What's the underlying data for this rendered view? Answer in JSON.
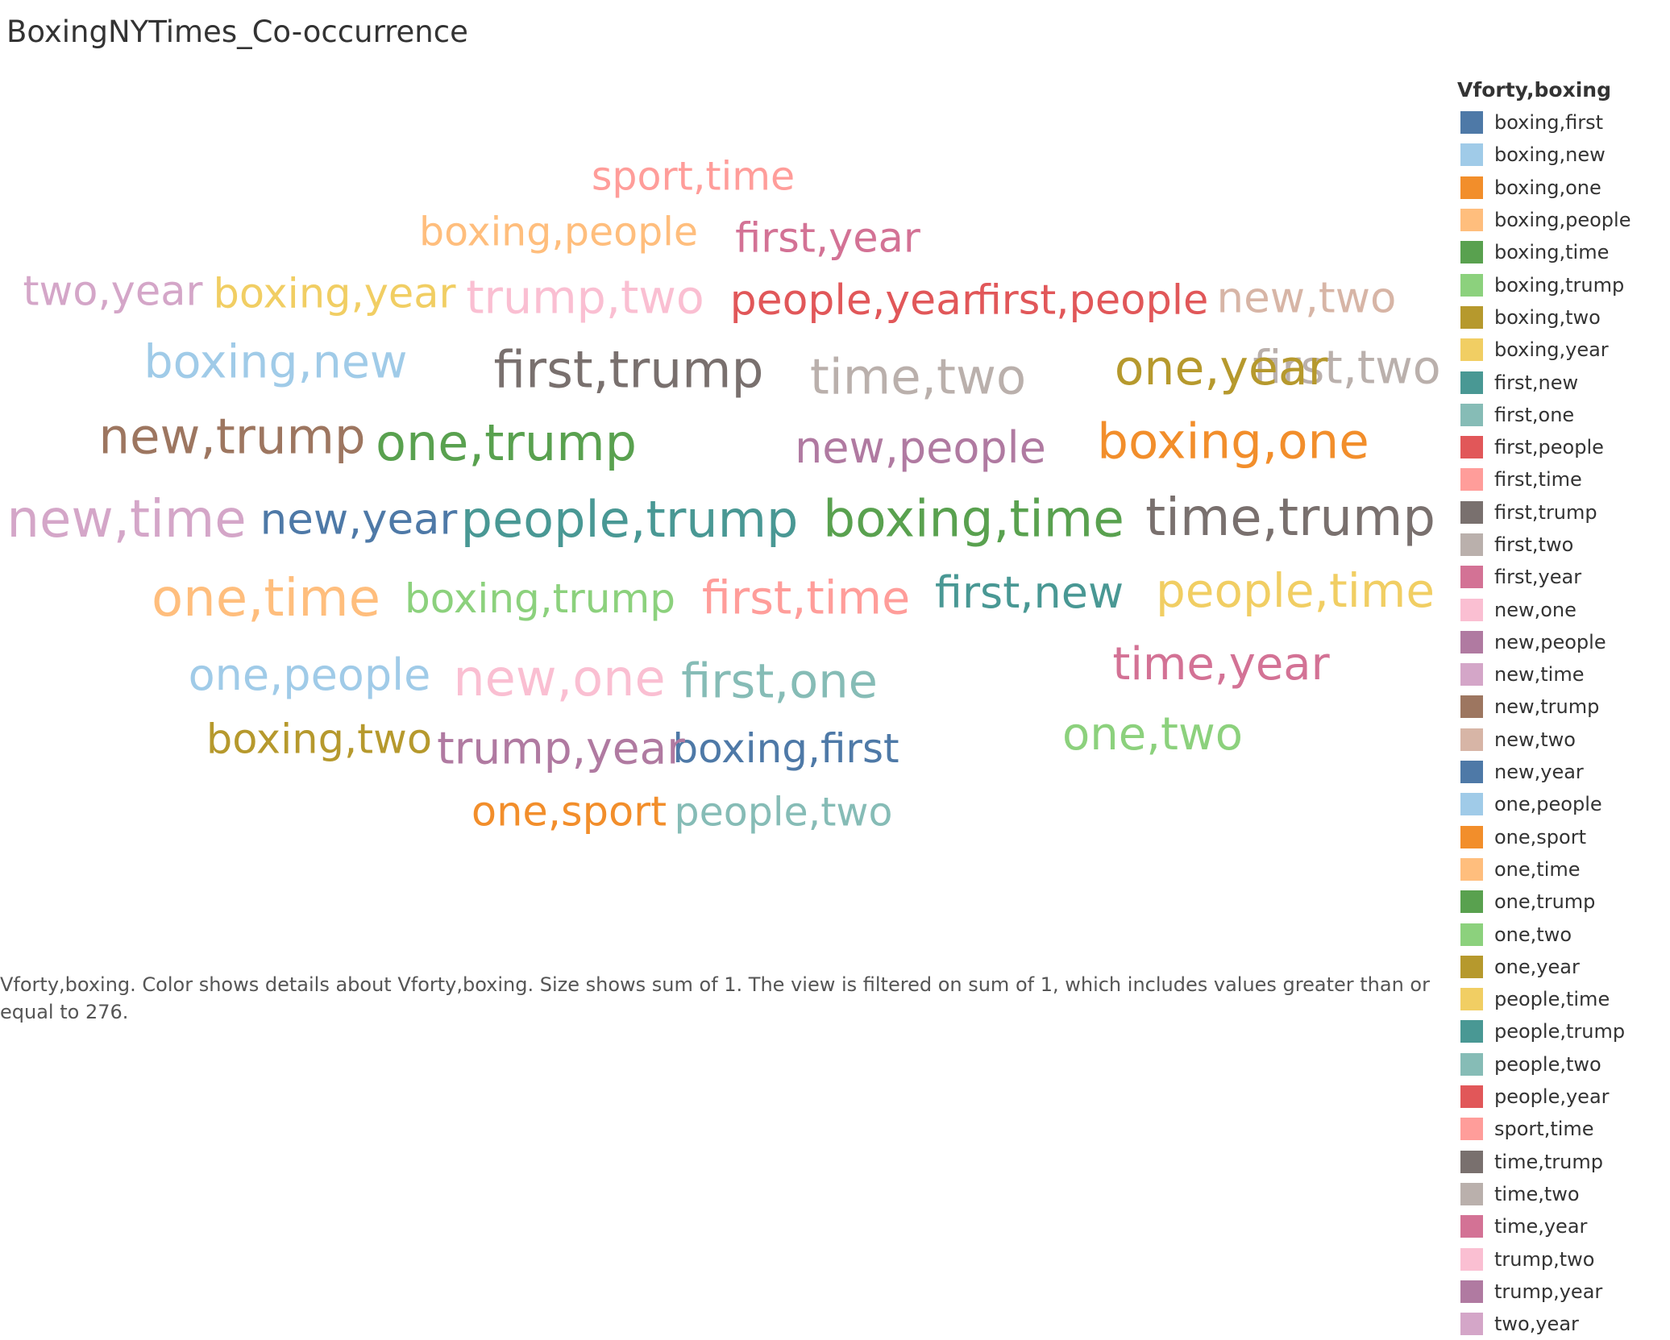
{
  "title": "BoxingNYTimes_Co-occurrence",
  "caption": "Vforty,boxing.  Color shows details about Vforty,boxing.  Size shows sum of 1. The view is filtered on sum of 1, which includes values greater than or equal to 276.",
  "chart_data": {
    "type": "word-cloud",
    "title": "BoxingNYTimes_Co-occurrence",
    "color_field": "Vforty,boxing",
    "size_field": "sum of 1",
    "filter": "sum of 1 >= 276",
    "legend_title": "Vforty,boxing",
    "legend_placement": "right",
    "categories": [
      {
        "label": "boxing,first",
        "color": "#4e79a7",
        "size_rank": 0.58
      },
      {
        "label": "boxing,new",
        "color": "#a0cbe8",
        "size_rank": 0.72
      },
      {
        "label": "boxing,one",
        "color": "#f28e2b",
        "size_rank": 0.78
      },
      {
        "label": "boxing,people",
        "color": "#ffbe7d",
        "size_rank": 0.55
      },
      {
        "label": "boxing,time",
        "color": "#59a14f",
        "size_rank": 0.82
      },
      {
        "label": "boxing,trump",
        "color": "#8cd17d",
        "size_rank": 0.58
      },
      {
        "label": "boxing,two",
        "color": "#b6992d",
        "size_rank": 0.6
      },
      {
        "label": "boxing,year",
        "color": "#f1ce63",
        "size_rank": 0.6
      },
      {
        "label": "first,new",
        "color": "#499894",
        "size_rank": 0.65
      },
      {
        "label": "first,one",
        "color": "#86bcb6",
        "size_rank": 0.75
      },
      {
        "label": "first,people",
        "color": "#e15759",
        "size_rank": 0.6
      },
      {
        "label": "first,time",
        "color": "#ff9d9a",
        "size_rank": 0.72
      },
      {
        "label": "first,trump",
        "color": "#79706e",
        "size_rank": 0.82
      },
      {
        "label": "first,two",
        "color": "#bab0ac",
        "size_rank": 0.72
      },
      {
        "label": "first,year",
        "color": "#d37295",
        "size_rank": 0.6
      },
      {
        "label": "new,one",
        "color": "#fabfd2",
        "size_rank": 0.8
      },
      {
        "label": "new,people",
        "color": "#b07aa1",
        "size_rank": 0.66
      },
      {
        "label": "new,time",
        "color": "#d4a6c8",
        "size_rank": 0.85
      },
      {
        "label": "new,trump",
        "color": "#9d7660",
        "size_rank": 0.78
      },
      {
        "label": "new,two",
        "color": "#d7b5a6",
        "size_rank": 0.64
      },
      {
        "label": "new,year",
        "color": "#4e79a7",
        "size_rank": 0.64
      },
      {
        "label": "one,people",
        "color": "#a0cbe8",
        "size_rank": 0.66
      },
      {
        "label": "one,sport",
        "color": "#f28e2b",
        "size_rank": 0.6
      },
      {
        "label": "one,time",
        "color": "#ffbe7d",
        "size_rank": 0.85
      },
      {
        "label": "one,trump",
        "color": "#59a14f",
        "size_rank": 0.8
      },
      {
        "label": "one,two",
        "color": "#8cd17d",
        "size_rank": 0.7
      },
      {
        "label": "one,year",
        "color": "#b6992d",
        "size_rank": 0.76
      },
      {
        "label": "people,time",
        "color": "#f1ce63",
        "size_rank": 0.74
      },
      {
        "label": "people,trump",
        "color": "#499894",
        "size_rank": 0.8
      },
      {
        "label": "people,two",
        "color": "#86bcb6",
        "size_rank": 0.55
      },
      {
        "label": "people,year",
        "color": "#e15759",
        "size_rank": 0.62
      },
      {
        "label": "sport,time",
        "color": "#ff9d9a",
        "size_rank": 0.55
      },
      {
        "label": "time,trump",
        "color": "#79706e",
        "size_rank": 0.85
      },
      {
        "label": "time,two",
        "color": "#bab0ac",
        "size_rank": 0.78
      },
      {
        "label": "time,year",
        "color": "#d37295",
        "size_rank": 0.7
      },
      {
        "label": "trump,two",
        "color": "#fabfd2",
        "size_rank": 0.72
      },
      {
        "label": "trump,year",
        "color": "#b07aa1",
        "size_rank": 0.68
      },
      {
        "label": "two,year",
        "color": "#d4a6c8",
        "size_rank": 0.6
      }
    ]
  }
}
